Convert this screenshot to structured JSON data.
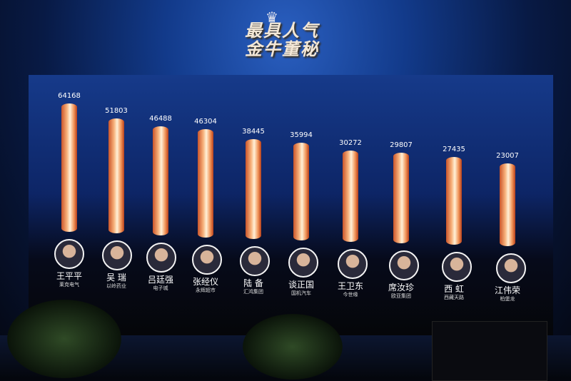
{
  "title_line1": "最具人气",
  "title_line2": "金牛董秘",
  "chart_data": {
    "type": "bar",
    "title": "最具人气金牛董秘",
    "categories": [
      "王平平",
      "吴 瑞",
      "吕廷强",
      "张经仪",
      "陆 备",
      "谈正国",
      "王卫东",
      "席汝珍",
      "西 虹",
      "江伟荣"
    ],
    "companies": [
      "莱克电气",
      "以岭药业",
      "电子城",
      "永辉超市",
      "汇鸿集团",
      "国机汽车",
      "今世缘",
      "欧亚集团",
      "西藏天路",
      "柏堡龙"
    ],
    "values": [
      64168,
      51803,
      46488,
      46304,
      38445,
      35994,
      30272,
      29807,
      27435,
      23007
    ],
    "value_labels": [
      "64168",
      "51803",
      "46488",
      "46304",
      "38445",
      "35994",
      "30272",
      "29807",
      "27435",
      "23007"
    ],
    "bar_color": "#f7b07a",
    "grid": false
  }
}
